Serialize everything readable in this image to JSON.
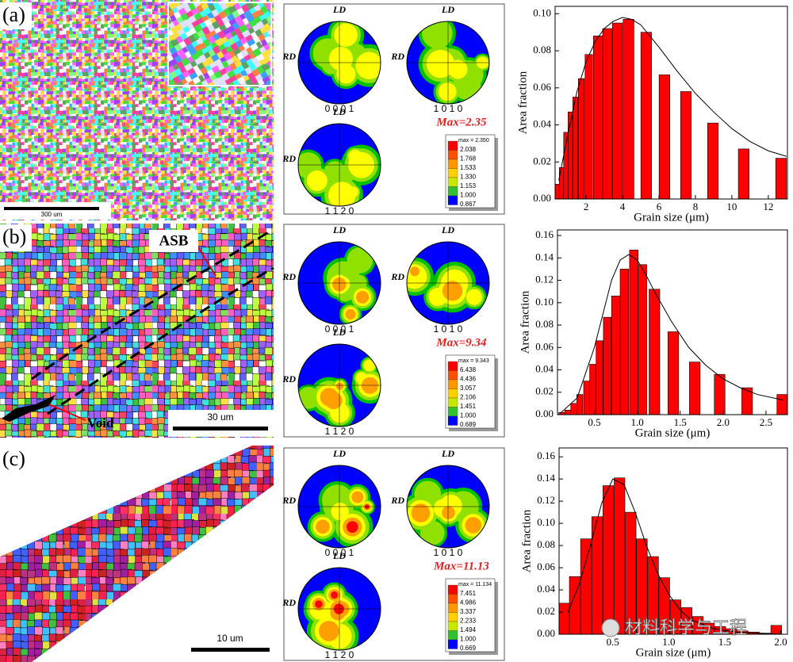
{
  "panels": [
    {
      "label": "(a)",
      "scale_bar": "300 um",
      "pole_figures": {
        "ld": "LD",
        "rd": "RD",
        "indices": [
          "0 0 0 1",
          "1 0 1 0",
          "1 1 2 0"
        ],
        "max": "Max=2.35",
        "legend_max": "max = 2.350",
        "legend_levels": [
          "2.038",
          "1.768",
          "1.533",
          "1.330",
          "1.153",
          "1.000",
          "0.867"
        ]
      }
    },
    {
      "label": "(b)",
      "scale_bar": "30 um",
      "annotations": [
        "ASB",
        "Void"
      ],
      "pole_figures": {
        "ld": "LD",
        "rd": "RD",
        "indices": [
          "0 0 0 1",
          "1 0 1 0",
          "1 1 2 0"
        ],
        "max": "Max=9.34",
        "legend_max": "max = 9.343",
        "legend_levels": [
          "6.438",
          "4.436",
          "3.057",
          "2.106",
          "1.451",
          "1.000",
          "0.689"
        ]
      }
    },
    {
      "label": "(c)",
      "scale_bar": "10 um",
      "pole_figures": {
        "ld": "LD",
        "rd": "RD",
        "indices": [
          "0 0 0 1",
          "1 0 1 0",
          "1 1 2 0"
        ],
        "max": "Max=11.13",
        "legend_max": "max = 11.134",
        "legend_levels": [
          "7.451",
          "4.986",
          "3.337",
          "2.233",
          "1.494",
          "1.000",
          "0.669"
        ]
      }
    }
  ],
  "watermark": "材料科学与工程",
  "chart_data": [
    {
      "type": "bar",
      "x_label": "Grain size (μm)",
      "y_label": "Area fraction",
      "xlim": [
        0.3,
        13.05
      ],
      "ylim": [
        0,
        0.104
      ],
      "xticks": [
        2,
        4,
        6,
        8,
        10,
        12
      ],
      "yticks": [
        {
          "value": 0,
          "label": "0.00"
        },
        {
          "value": 0.02,
          "label": "0.02"
        },
        {
          "value": 0.04,
          "label": "0.04"
        },
        {
          "value": 0.06,
          "label": "0.06"
        },
        {
          "value": 0.08,
          "label": "0.08"
        },
        {
          "value": 0.1,
          "label": "0.10"
        }
      ],
      "bars": {
        "color": "#ff0000",
        "x": [
          0.41,
          0.65,
          0.89,
          1.13,
          1.41,
          1.74,
          2.15,
          2.65,
          3.17,
          3.72,
          4.33,
          5.3,
          6.3,
          7.48,
          8.96,
          10.65,
          12.7
        ],
        "values": [
          0.008,
          0.017,
          0.036,
          0.047,
          0.055,
          0.065,
          0.078,
          0.088,
          0.092,
          0.095,
          0.097,
          0.09,
          0.067,
          0.058,
          0.041,
          0.027,
          0.022
        ]
      },
      "fit": {
        "color": "#000000",
        "x": [
          0.5,
          1,
          1.5,
          2,
          2.5,
          3,
          3.5,
          4,
          4.5,
          5,
          6,
          7,
          8,
          9,
          10,
          11,
          12,
          13
        ],
        "values": [
          0.01,
          0.035,
          0.058,
          0.074,
          0.085,
          0.092,
          0.096,
          0.098,
          0.097,
          0.094,
          0.082,
          0.069,
          0.057,
          0.047,
          0.038,
          0.031,
          0.026,
          0.023
        ]
      }
    },
    {
      "type": "bar",
      "x_label": "Grain size (μm)",
      "y_label": "Area fraction",
      "xlim": [
        0.07,
        2.75
      ],
      "ylim": [
        0,
        0.165
      ],
      "xticks": [
        0.5,
        {
          "value": 1,
          "label": "1.0"
        },
        1.5,
        {
          "value": 2,
          "label": "2.0"
        },
        2.5
      ],
      "yticks": [
        {
          "value": 0,
          "label": "0.00"
        },
        {
          "value": 0.02,
          "label": "0.02"
        },
        {
          "value": 0.04,
          "label": "0.04"
        },
        {
          "value": 0.06,
          "label": "0.06"
        },
        {
          "value": 0.08,
          "label": "0.08"
        },
        {
          "value": 0.1,
          "label": "0.10"
        },
        {
          "value": 0.12,
          "label": "0.12"
        },
        {
          "value": 0.14,
          "label": "0.14"
        },
        {
          "value": 0.16,
          "label": "0.16"
        }
      ],
      "bars": {
        "color": "#ff0000",
        "x": [
          0.12,
          0.19,
          0.26,
          0.33,
          0.41,
          0.48,
          0.56,
          0.65,
          0.75,
          0.85,
          0.96,
          1.06,
          1.2,
          1.42,
          1.67,
          1.96,
          2.28,
          2.69
        ],
        "values": [
          0.002,
          0.004,
          0.01,
          0.018,
          0.03,
          0.045,
          0.066,
          0.087,
          0.106,
          0.13,
          0.147,
          0.134,
          0.112,
          0.074,
          0.047,
          0.036,
          0.024,
          0.018
        ]
      },
      "fit": {
        "color": "#000000",
        "x": [
          0.1,
          0.3,
          0.5,
          0.6,
          0.7,
          0.8,
          0.9,
          1,
          1.1,
          1.2,
          1.4,
          1.6,
          1.8,
          2,
          2.2,
          2.4,
          2.7
        ],
        "values": [
          0.001,
          0.015,
          0.06,
          0.09,
          0.12,
          0.138,
          0.143,
          0.138,
          0.125,
          0.11,
          0.083,
          0.06,
          0.044,
          0.032,
          0.024,
          0.018,
          0.013
        ]
      }
    },
    {
      "type": "bar",
      "x_label": "Grain size (μm)",
      "y_label": "Area fraction",
      "xlim": [
        0.02,
        2.06
      ],
      "ylim": [
        0,
        0.168
      ],
      "xticks": [
        0.5,
        {
          "value": 1,
          "label": "1.0"
        },
        1.5,
        {
          "value": 2,
          "label": "2.0"
        }
      ],
      "yticks": [
        {
          "value": 0,
          "label": "0.00"
        },
        {
          "value": 0.02,
          "label": "0.02"
        },
        {
          "value": 0.04,
          "label": "0.04"
        },
        {
          "value": 0.06,
          "label": "0.06"
        },
        {
          "value": 0.08,
          "label": "0.08"
        },
        {
          "value": 0.1,
          "label": "0.10"
        },
        {
          "value": 0.12,
          "label": "0.12"
        },
        {
          "value": 0.14,
          "label": "0.14"
        },
        {
          "value": 0.16,
          "label": "0.16"
        }
      ],
      "bars": {
        "color": "#ff0000",
        "x": [
          0.06,
          0.16,
          0.26,
          0.36,
          0.46,
          0.56,
          0.66,
          0.76,
          0.86,
          0.96,
          1.06,
          1.16,
          1.26,
          1.36,
          1.46,
          1.56,
          1.66,
          1.76,
          1.86,
          1.96
        ],
        "values": [
          0.028,
          0.052,
          0.086,
          0.106,
          0.134,
          0.141,
          0.11,
          0.086,
          0.07,
          0.051,
          0.031,
          0.024,
          0.016,
          0.01,
          0.007,
          0.005,
          0.003,
          0.002,
          0.001,
          0.008
        ]
      },
      "fit": {
        "color": "#000000",
        "x": [
          0.1,
          0.2,
          0.3,
          0.4,
          0.5,
          0.6,
          0.7,
          0.8,
          0.9,
          1,
          1.1,
          1.2,
          1.4,
          1.6,
          2
        ],
        "values": [
          0.02,
          0.045,
          0.08,
          0.118,
          0.14,
          0.135,
          0.11,
          0.08,
          0.055,
          0.036,
          0.022,
          0.013,
          0.005,
          0.002,
          0
        ]
      }
    }
  ]
}
